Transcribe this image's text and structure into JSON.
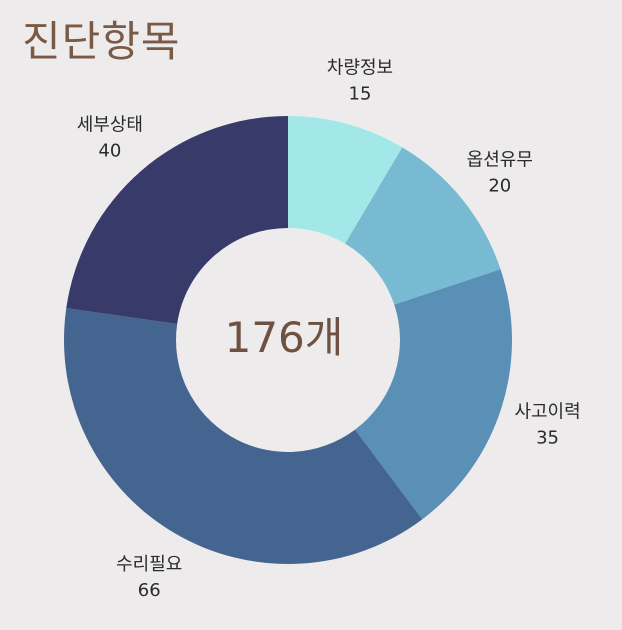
{
  "title": "진단항목",
  "center_label": "176개",
  "chart_data": {
    "type": "pie",
    "variant": "donut",
    "title": "진단항목",
    "categories": [
      "차량정보",
      "옵션유무",
      "사고이력",
      "수리필요",
      "세부상태"
    ],
    "values": [
      15,
      20,
      35,
      66,
      40
    ],
    "total": 176,
    "colors": [
      "#A3E8E8",
      "#78BAD1",
      "#5A8FB6",
      "#44658F",
      "#383B69"
    ],
    "legend": "none",
    "start_angle": "top",
    "direction": "clockwise"
  }
}
